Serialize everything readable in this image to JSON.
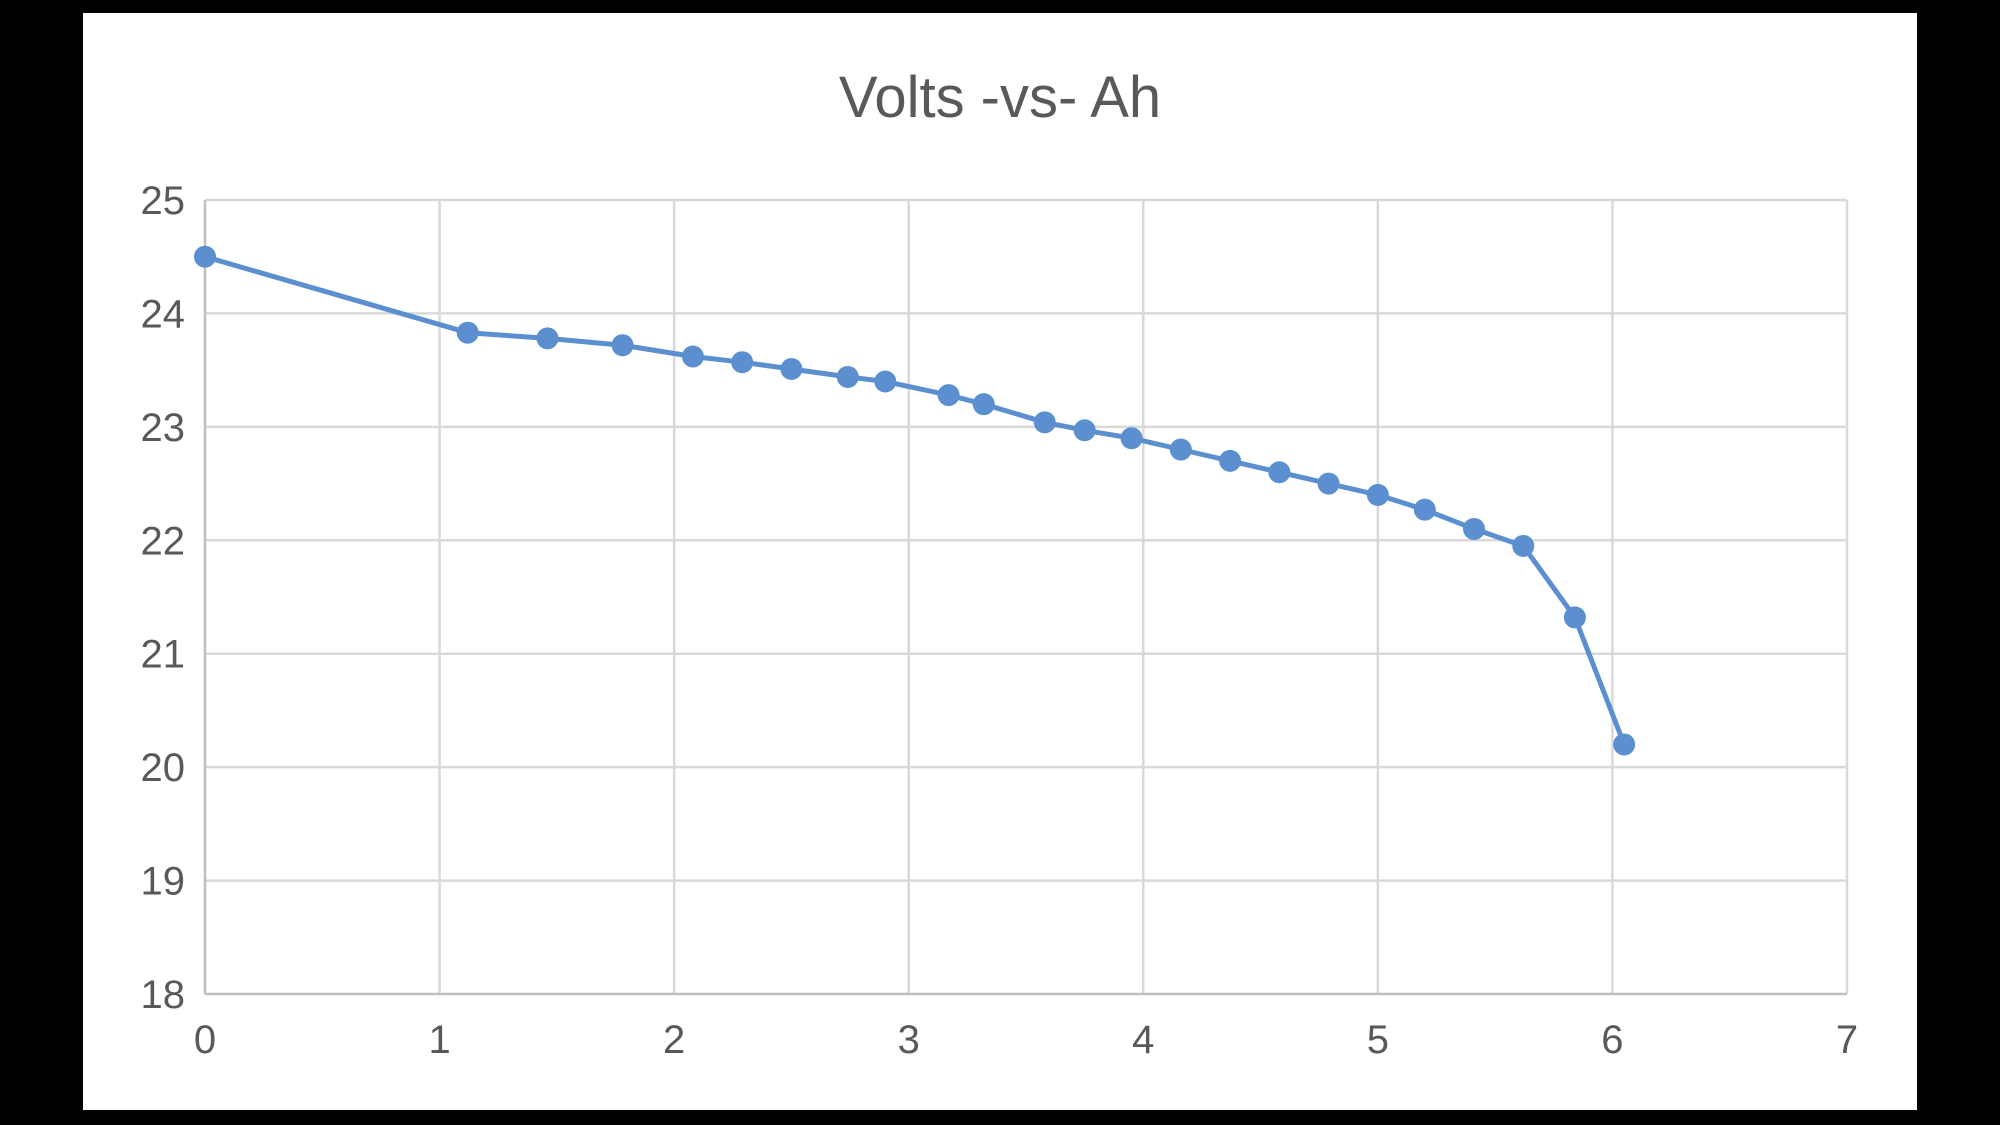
{
  "chart_data": {
    "type": "scatter",
    "title": "Volts -vs- Ah",
    "xlabel": "",
    "ylabel": "",
    "xlim": [
      0,
      7
    ],
    "ylim": [
      18,
      25
    ],
    "x_ticks": [
      "0",
      "1",
      "2",
      "3",
      "4",
      "5",
      "6",
      "7"
    ],
    "y_ticks": [
      "18",
      "19",
      "20",
      "21",
      "22",
      "23",
      "24",
      "25"
    ],
    "grid": true,
    "legend": "none",
    "series": [
      {
        "color": "#5b8fcf",
        "marker": "circle",
        "line": true,
        "points": [
          [
            0.0,
            24.5
          ],
          [
            1.12,
            23.83
          ],
          [
            1.46,
            23.78
          ],
          [
            1.78,
            23.72
          ],
          [
            2.08,
            23.62
          ],
          [
            2.29,
            23.57
          ],
          [
            2.5,
            23.51
          ],
          [
            2.74,
            23.44
          ],
          [
            2.9,
            23.4
          ],
          [
            3.17,
            23.28
          ],
          [
            3.32,
            23.2
          ],
          [
            3.58,
            23.04
          ],
          [
            3.75,
            22.97
          ],
          [
            3.95,
            22.9
          ],
          [
            4.16,
            22.8
          ],
          [
            4.37,
            22.7
          ],
          [
            4.58,
            22.6
          ],
          [
            4.79,
            22.5
          ],
          [
            5.0,
            22.4
          ],
          [
            5.2,
            22.27
          ],
          [
            5.41,
            22.1
          ],
          [
            5.62,
            21.95
          ],
          [
            5.84,
            21.32
          ],
          [
            6.05,
            20.2
          ]
        ]
      }
    ]
  }
}
